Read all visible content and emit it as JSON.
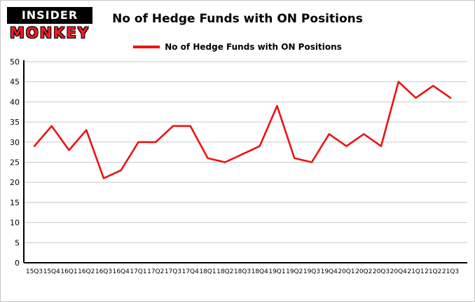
{
  "logo": {
    "line1": "INSIDER",
    "line2": "MONKEY"
  },
  "header": {
    "title": "No of Hedge Funds with ON Positions"
  },
  "legend": {
    "label": "No of Hedge Funds with ON Positions"
  },
  "colors": {
    "line": "#ee1111",
    "grid": "#c9c9c9",
    "axis": "#000000",
    "label": "#000000"
  },
  "chart_data": {
    "type": "line",
    "title": "No of Hedge Funds with ON Positions",
    "categories": [
      "15Q3",
      "15Q4",
      "16Q1",
      "16Q2",
      "16Q3",
      "16Q4",
      "17Q1",
      "17Q2",
      "17Q3",
      "17Q4",
      "18Q1",
      "18Q2",
      "18Q3",
      "18Q4",
      "19Q1",
      "19Q2",
      "19Q3",
      "19Q4",
      "20Q1",
      "20Q2",
      "20Q3",
      "20Q4",
      "21Q1",
      "21Q2",
      "21Q3"
    ],
    "series": [
      {
        "name": "No of Hedge Funds with ON Positions",
        "color": "#ee1111",
        "values": [
          29,
          34,
          28,
          33,
          21,
          23,
          30,
          30,
          34,
          34,
          26,
          25,
          27,
          29,
          39,
          26,
          25,
          32,
          29,
          32,
          29,
          45,
          41,
          44,
          41
        ]
      }
    ],
    "xlabel": "",
    "ylabel": "",
    "ylim": [
      0,
      50
    ],
    "ytick_interval": 5,
    "grid": true,
    "legend_position": "top"
  }
}
